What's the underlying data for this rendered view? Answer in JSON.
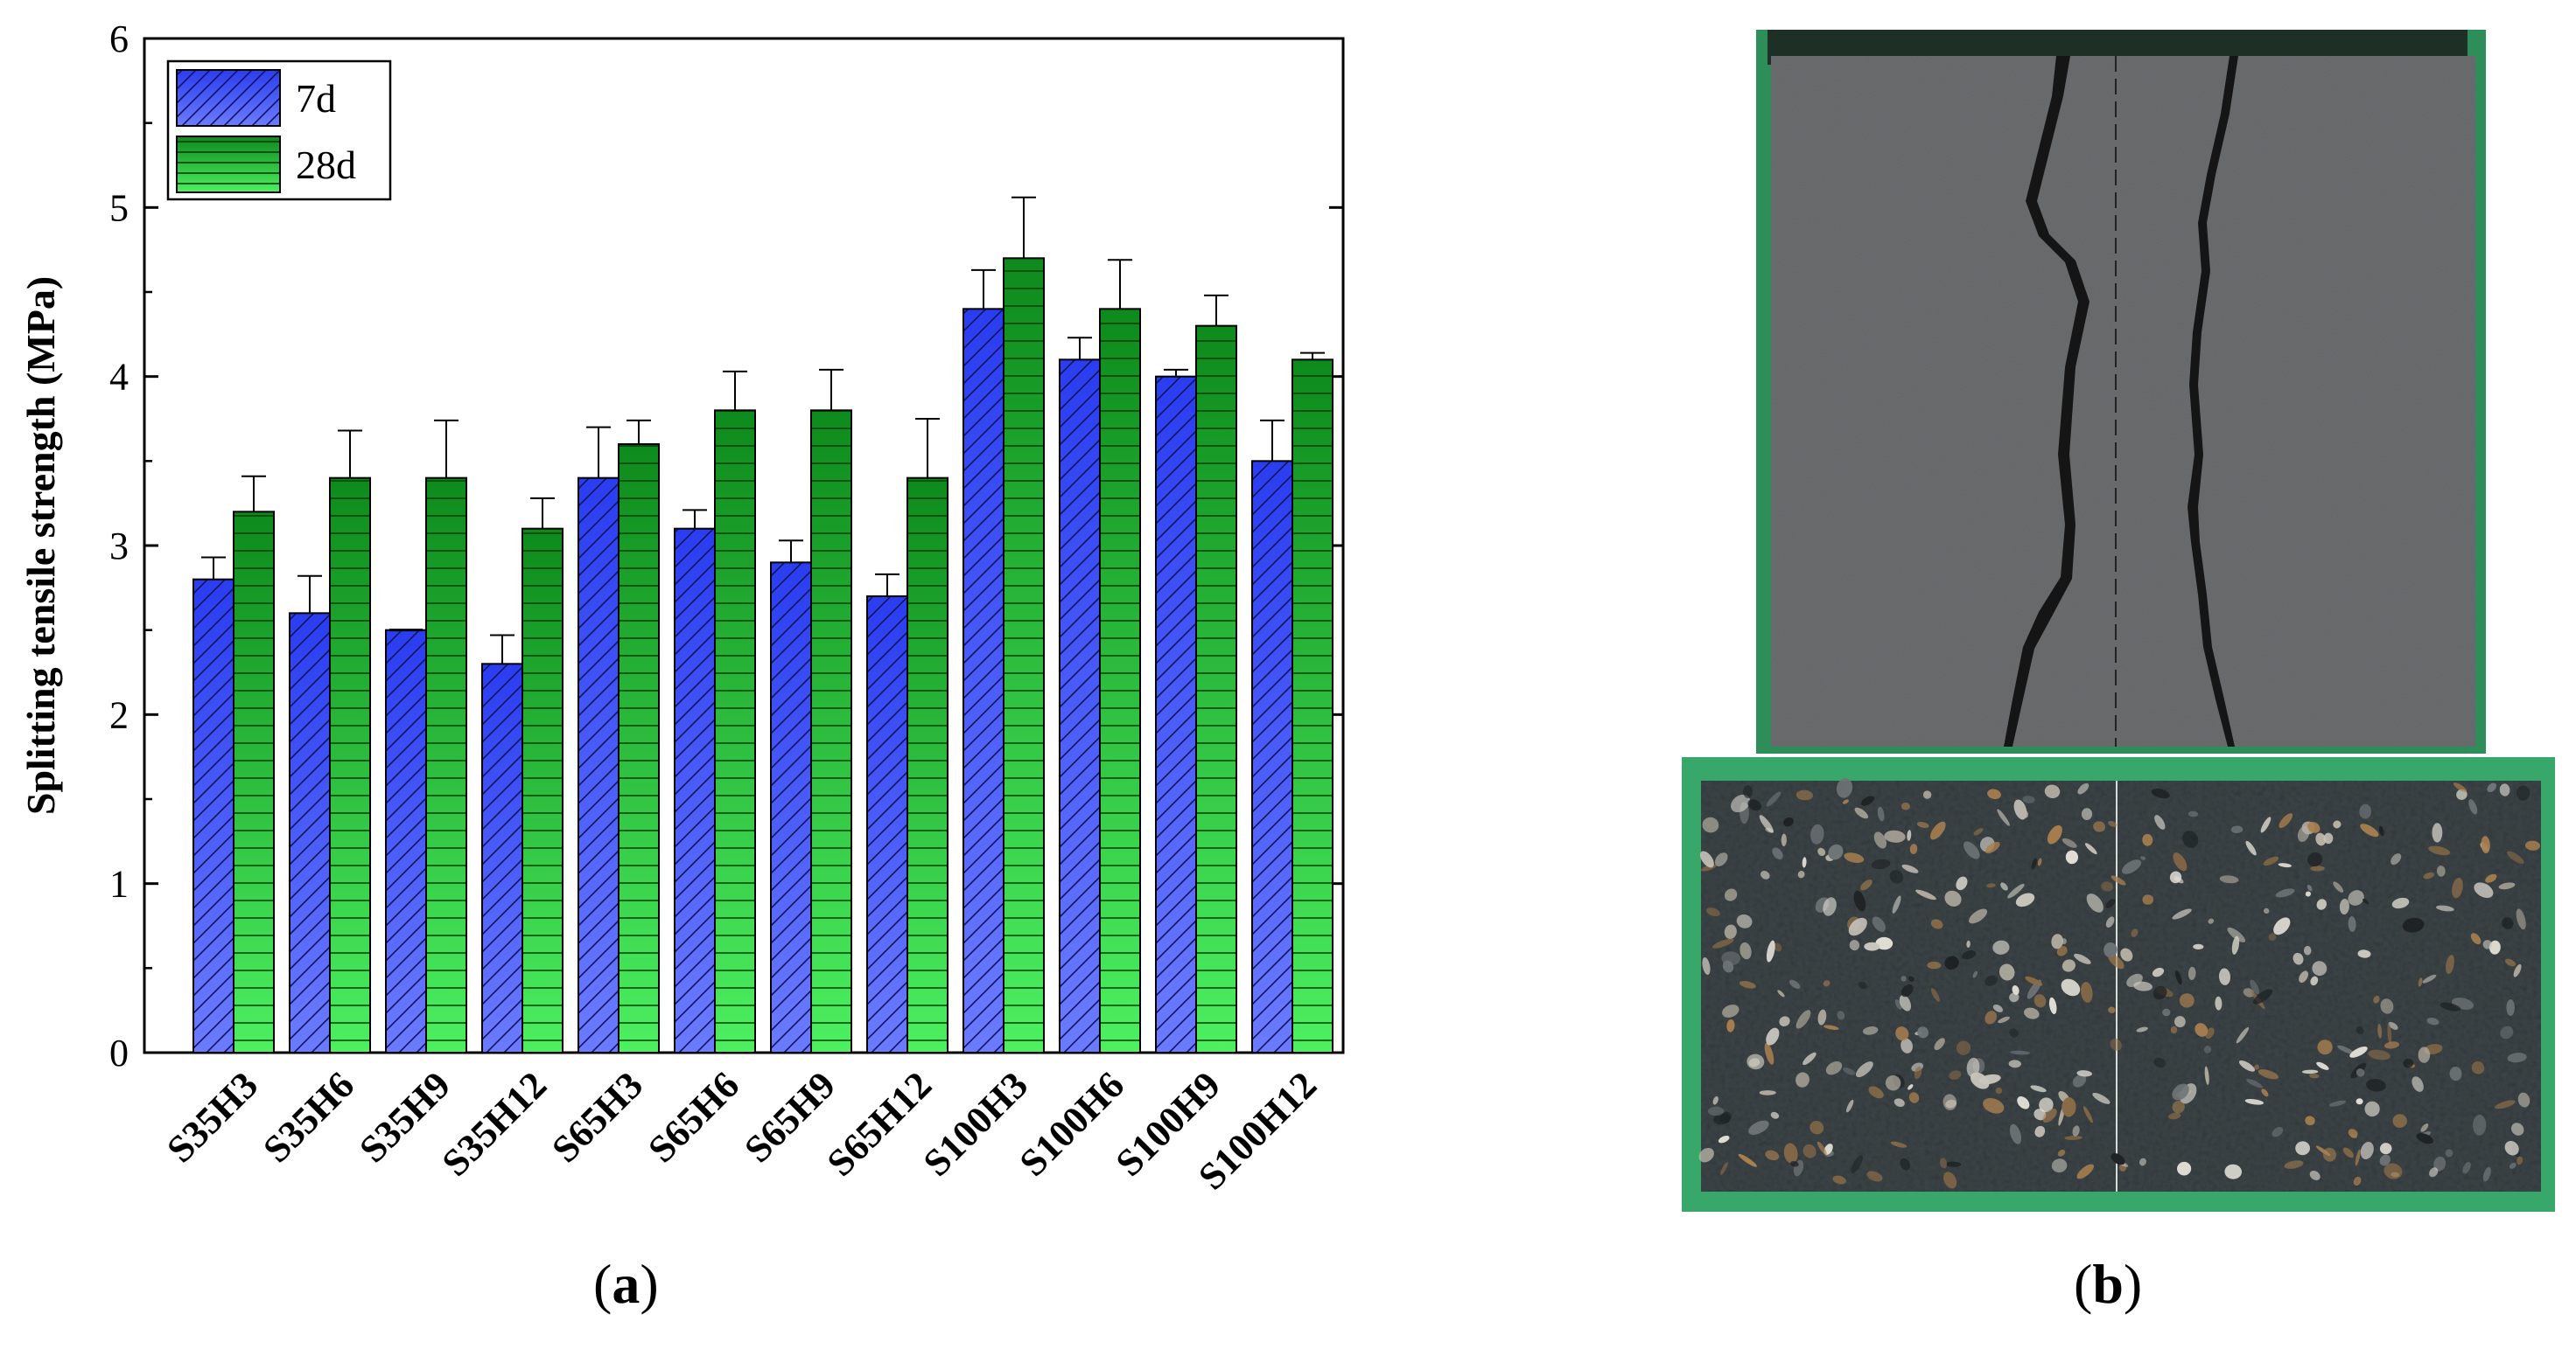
{
  "chart_data": {
    "type": "bar",
    "title": "",
    "xlabel": "",
    "ylabel": "Splitting tensile strength (MPa)",
    "ylim": [
      0,
      6
    ],
    "yticks": [
      0,
      1,
      2,
      3,
      4,
      5,
      6
    ],
    "yticklabels": [
      "0",
      "1",
      "2",
      "3",
      "4",
      "5",
      "6"
    ],
    "grid": false,
    "legend_position": "top-left",
    "categories": [
      "S35H3",
      "S35H6",
      "S35H9",
      "S35H12",
      "S65H3",
      "S65H6",
      "S65H9",
      "S65H12",
      "S100H3",
      "S100H6",
      "S100H9",
      "S100H12"
    ],
    "series": [
      {
        "name": "7d",
        "color": "#3b4ff0",
        "pattern": "diagonal-hatch",
        "values": [
          2.8,
          2.6,
          2.5,
          2.3,
          3.4,
          3.1,
          2.9,
          2.7,
          4.4,
          4.1,
          4.0,
          3.5
        ],
        "errors": [
          0.13,
          0.22,
          0.0,
          0.17,
          0.3,
          0.11,
          0.13,
          0.13,
          0.23,
          0.13,
          0.04,
          0.24
        ]
      },
      {
        "name": "28d",
        "color": "#1fa828",
        "pattern": "horizontal-lines",
        "values": [
          3.2,
          3.4,
          3.4,
          3.1,
          3.6,
          3.8,
          3.8,
          3.4,
          4.7,
          4.4,
          4.3,
          4.1
        ],
        "errors": [
          0.21,
          0.28,
          0.34,
          0.18,
          0.14,
          0.23,
          0.24,
          0.35,
          0.36,
          0.29,
          0.18,
          0.04
        ]
      }
    ]
  },
  "labels": {
    "panel_a": "a",
    "panel_b": "b"
  },
  "photo": {
    "top_specimen": "split concrete specimen with two cracks",
    "bottom_specimen": "cross-section of split concrete specimen"
  }
}
